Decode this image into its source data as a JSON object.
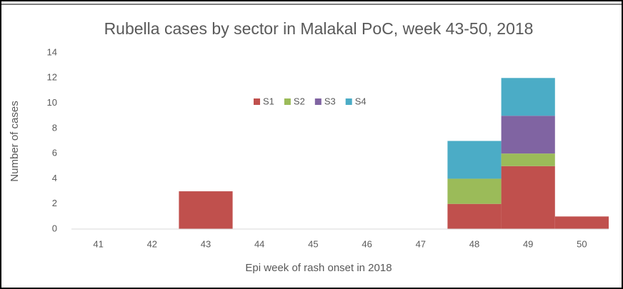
{
  "chart_data": {
    "type": "bar",
    "stacked": true,
    "title": "Rubella cases by sector in Malakal PoC, week 43-50, 2018",
    "x_label": "Epi week of rash onset in 2018",
    "y_label": "Number of cases",
    "categories": [
      "41",
      "42",
      "43",
      "44",
      "45",
      "46",
      "47",
      "48",
      "49",
      "50"
    ],
    "series": [
      {
        "name": "S1",
        "color": "#c0504d",
        "values": [
          0,
          0,
          3,
          0,
          0,
          0,
          0,
          2,
          5,
          1
        ]
      },
      {
        "name": "S2",
        "color": "#9bbb59",
        "values": [
          0,
          0,
          0,
          0,
          0,
          0,
          0,
          2,
          1,
          0
        ]
      },
      {
        "name": "S3",
        "color": "#8064a2",
        "values": [
          0,
          0,
          0,
          0,
          0,
          0,
          0,
          0,
          3,
          0
        ]
      },
      {
        "name": "S4",
        "color": "#4bacc6",
        "values": [
          0,
          0,
          0,
          0,
          0,
          0,
          0,
          3,
          3,
          0
        ]
      }
    ],
    "ylim": [
      0,
      14
    ],
    "yticks": [
      0,
      2,
      4,
      6,
      8,
      10,
      12,
      14
    ],
    "grid": false,
    "legend": "top"
  }
}
